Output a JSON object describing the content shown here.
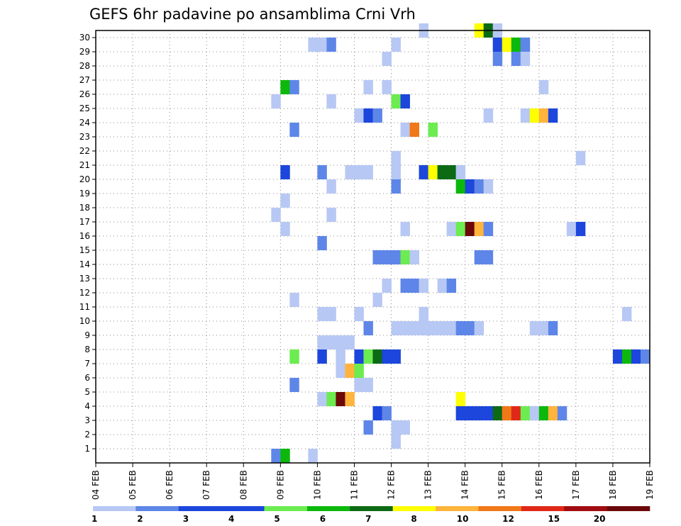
{
  "chart_data": {
    "type": "heatmap",
    "title": "GEFS 6hr padavine po ansamblima Crni Vrh",
    "x_tick_labels": [
      "04 FEB",
      "05 FEB",
      "06 FEB",
      "07 FEB",
      "08 FEB",
      "09 FEB",
      "10 FEB",
      "11 FEB",
      "12 FEB",
      "13 FEB",
      "14 FEB",
      "15 FEB",
      "16 FEB",
      "17 FEB",
      "18 FEB",
      "19 FEB"
    ],
    "y_tick_labels": [
      "1",
      "2",
      "3",
      "4",
      "5",
      "6",
      "7",
      "8",
      "9",
      "10",
      "11",
      "12",
      "13",
      "14",
      "15",
      "16",
      "17",
      "18",
      "19",
      "20",
      "21",
      "22",
      "23",
      "24",
      "25",
      "26",
      "27",
      "28",
      "29",
      "30"
    ],
    "x_step": "6hr",
    "ylim": [
      0,
      30
    ],
    "grid": true,
    "colorbar": {
      "position": "bottom",
      "labels": [
        "1",
        "2",
        "3",
        "4",
        "5",
        "6",
        "7",
        "8",
        "10",
        "12",
        "15",
        "20"
      ],
      "colors": [
        "#b8c8f4",
        "#5e86e8",
        "#1c46dc",
        "#1c46dc",
        "#6cec50",
        "#0cb80c",
        "#0c6a14",
        "#ffff00",
        "#ffb43c",
        "#f07818",
        "#e02818",
        "#a00c10",
        "#6c0808"
      ]
    },
    "cells": [
      [
        30,
        "12 18",
        1
      ],
      [
        30,
        "14 06",
        8
      ],
      [
        30,
        "14 12",
        7
      ],
      [
        30,
        "14 18",
        1
      ],
      [
        29,
        "09 18",
        1
      ],
      [
        29,
        "10 00",
        1
      ],
      [
        29,
        "10 06",
        2
      ],
      [
        29,
        "12 00",
        1
      ],
      [
        29,
        "14 18",
        3
      ],
      [
        29,
        "15 00",
        8
      ],
      [
        29,
        "15 06",
        6
      ],
      [
        29,
        "15 12",
        2
      ],
      [
        28,
        "11 18",
        1
      ],
      [
        28,
        "14 18",
        2
      ],
      [
        28,
        "15 06",
        2
      ],
      [
        28,
        "15 12",
        1
      ],
      [
        26,
        "09 00",
        6
      ],
      [
        26,
        "09 06",
        2
      ],
      [
        26,
        "11 06",
        1
      ],
      [
        26,
        "11 18",
        1
      ],
      [
        26,
        "16 00",
        1
      ],
      [
        25,
        "08 18",
        1
      ],
      [
        25,
        "10 06",
        1
      ],
      [
        25,
        "12 00",
        5
      ],
      [
        25,
        "12 06",
        3
      ],
      [
        24,
        "11 00",
        1
      ],
      [
        24,
        "11 06",
        3
      ],
      [
        24,
        "11 12",
        2
      ],
      [
        24,
        "14 12",
        1
      ],
      [
        24,
        "15 12",
        1
      ],
      [
        24,
        "15 18",
        8
      ],
      [
        24,
        "16 00",
        10
      ],
      [
        24,
        "16 06",
        3
      ],
      [
        23,
        "09 06",
        2
      ],
      [
        23,
        "12 06",
        1
      ],
      [
        23,
        "12 12",
        12
      ],
      [
        23,
        "13 00",
        5
      ],
      [
        21,
        "12 00",
        1
      ],
      [
        21,
        "17 00",
        1
      ],
      [
        20,
        "09 00",
        3
      ],
      [
        20,
        "10 00",
        2
      ],
      [
        20,
        "10 18",
        1
      ],
      [
        20,
        "11 00",
        1
      ],
      [
        20,
        "11 06",
        1
      ],
      [
        20,
        "12 00",
        1
      ],
      [
        20,
        "12 18",
        3
      ],
      [
        20,
        "13 00",
        8
      ],
      [
        20,
        "13 06",
        7
      ],
      [
        20,
        "13 12",
        7
      ],
      [
        20,
        "13 18",
        1
      ],
      [
        19,
        "10 06",
        1
      ],
      [
        19,
        "12 00",
        2
      ],
      [
        19,
        "13 18",
        6
      ],
      [
        19,
        "14 00",
        3
      ],
      [
        19,
        "14 06",
        2
      ],
      [
        19,
        "14 12",
        1
      ],
      [
        18,
        "09 00",
        1
      ],
      [
        17,
        "08 18",
        1
      ],
      [
        17,
        "10 06",
        1
      ],
      [
        16,
        "09 00",
        1
      ],
      [
        16,
        "12 06",
        1
      ],
      [
        16,
        "13 12",
        1
      ],
      [
        16,
        "13 18",
        5
      ],
      [
        16,
        "14 00",
        20
      ],
      [
        16,
        "14 06",
        10
      ],
      [
        16,
        "14 12",
        2
      ],
      [
        16,
        "16 18",
        1
      ],
      [
        16,
        "17 00",
        3
      ],
      [
        15,
        "10 00",
        2
      ],
      [
        14,
        "11 12",
        2
      ],
      [
        14,
        "11 18",
        2
      ],
      [
        14,
        "12 00",
        2
      ],
      [
        14,
        "12 06",
        5
      ],
      [
        14,
        "12 12",
        1
      ],
      [
        14,
        "14 06",
        2
      ],
      [
        14,
        "14 12",
        2
      ],
      [
        12,
        "11 18",
        1
      ],
      [
        12,
        "12 06",
        2
      ],
      [
        12,
        "12 12",
        2
      ],
      [
        12,
        "12 18",
        1
      ],
      [
        12,
        "13 06",
        1
      ],
      [
        12,
        "13 12",
        2
      ],
      [
        11,
        "09 06",
        1
      ],
      [
        11,
        "11 12",
        1
      ],
      [
        10,
        "10 00",
        1
      ],
      [
        10,
        "10 06",
        1
      ],
      [
        10,
        "11 00",
        1
      ],
      [
        10,
        "12 18",
        1
      ],
      [
        10,
        "18 06",
        1
      ],
      [
        9,
        "11 06",
        2
      ],
      [
        9,
        "12 00",
        1
      ],
      [
        9,
        "12 06",
        1
      ],
      [
        9,
        "12 12",
        1
      ],
      [
        9,
        "12 18",
        1
      ],
      [
        9,
        "13 00",
        1
      ],
      [
        9,
        "13 06",
        1
      ],
      [
        9,
        "13 12",
        1
      ],
      [
        9,
        "13 18",
        2
      ],
      [
        9,
        "14 00",
        2
      ],
      [
        9,
        "14 06",
        1
      ],
      [
        9,
        "15 18",
        1
      ],
      [
        9,
        "16 00",
        1
      ],
      [
        9,
        "16 06",
        2
      ],
      [
        8,
        "10 00",
        1
      ],
      [
        8,
        "10 06",
        1
      ],
      [
        8,
        "10 12",
        1
      ],
      [
        8,
        "10 18",
        1
      ],
      [
        7,
        "09 06",
        5
      ],
      [
        7,
        "10 00",
        3
      ],
      [
        7,
        "10 12",
        1
      ],
      [
        7,
        "11 00",
        3
      ],
      [
        7,
        "11 06",
        5
      ],
      [
        7,
        "11 12",
        7
      ],
      [
        7,
        "11 18",
        3
      ],
      [
        7,
        "12 00",
        3
      ],
      [
        7,
        "18 00",
        3
      ],
      [
        7,
        "18 06",
        6
      ],
      [
        7,
        "18 12",
        3
      ],
      [
        7,
        "18 18",
        2
      ],
      [
        6,
        "10 12",
        1
      ],
      [
        6,
        "10 18",
        10
      ],
      [
        6,
        "11 00",
        5
      ],
      [
        5,
        "09 06",
        2
      ],
      [
        5,
        "11 00",
        1
      ],
      [
        5,
        "11 06",
        1
      ],
      [
        4,
        "10 00",
        1
      ],
      [
        4,
        "10 06",
        5
      ],
      [
        4,
        "10 12",
        20
      ],
      [
        4,
        "10 18",
        10
      ],
      [
        4,
        "13 18",
        8
      ],
      [
        3,
        "11 12",
        3
      ],
      [
        3,
        "11 18",
        2
      ],
      [
        3,
        "13 18",
        3
      ],
      [
        3,
        "14 00",
        3
      ],
      [
        3,
        "14 06",
        3
      ],
      [
        3,
        "14 12",
        3
      ],
      [
        3,
        "14 18",
        7
      ],
      [
        3,
        "15 00",
        12
      ],
      [
        3,
        "15 06",
        15
      ],
      [
        3,
        "15 12",
        5
      ],
      [
        3,
        "15 18",
        1
      ],
      [
        3,
        "16 00",
        6
      ],
      [
        3,
        "16 06",
        10
      ],
      [
        3,
        "16 12",
        2
      ],
      [
        2,
        "11 06",
        2
      ],
      [
        2,
        "12 00",
        1
      ],
      [
        2,
        "12 06",
        1
      ],
      [
        1,
        "12 00",
        1
      ],
      [
        0,
        "08 18",
        2
      ],
      [
        0,
        "09 00",
        6
      ],
      [
        0,
        "09 18",
        1
      ]
    ]
  }
}
